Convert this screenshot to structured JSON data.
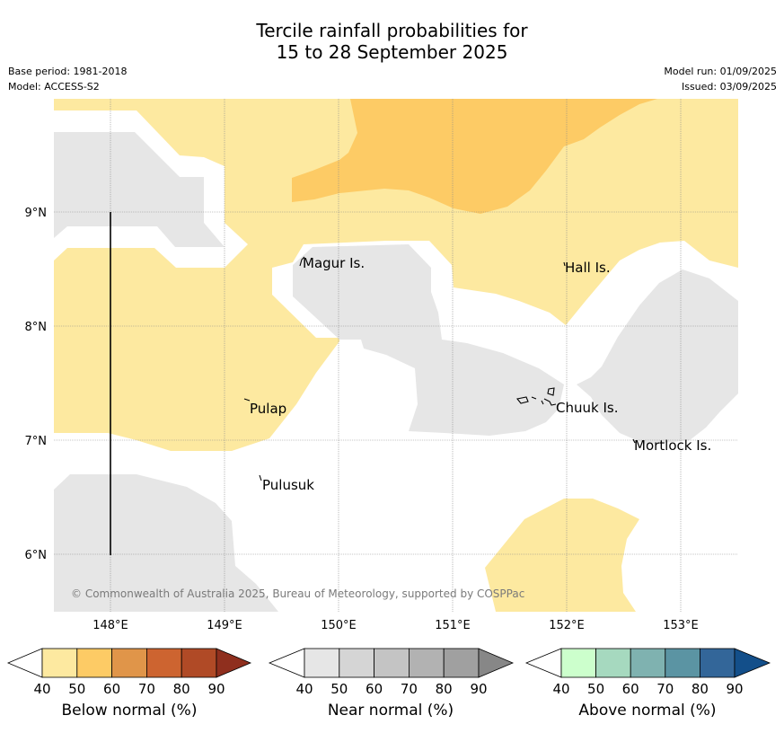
{
  "title": {
    "line1": "Tercile rainfall probabilities for",
    "line2": "15 to 28 September 2025"
  },
  "meta": {
    "base_period": "Base period: 1981-2018",
    "model": "Model: ACCESS-S2",
    "model_run": "Model run: 01/09/2025",
    "issued": "Issued: 03/09/2025"
  },
  "map": {
    "lon_range": [
      147.5,
      153.5
    ],
    "lat_range": [
      5.5,
      9.98
    ],
    "lon_ticks": [
      "148°E",
      "149°E",
      "150°E",
      "151°E",
      "152°E",
      "153°E"
    ],
    "lat_ticks": [
      "9°N",
      "8°N",
      "7°N",
      "6°N"
    ],
    "gridlines": true,
    "places": [
      "Magur Is.",
      "Hall Is.",
      "Pulap",
      "Chuuk Is.",
      "Mortlock Is.",
      "Pulusuk"
    ],
    "copyright": "© Commonwealth of Australia 2025, Bureau of Meteorology, supported by COSPPac",
    "colors": {
      "below_40_50": "#fde9a0",
      "below_50_60": "#fdcb65",
      "near_40_50": "#e6e6e6",
      "background": "#ffffff"
    }
  },
  "colorbars": [
    {
      "label": "Below normal (%)",
      "ticks": [
        "40",
        "50",
        "60",
        "70",
        "80",
        "90"
      ],
      "colors": [
        "#fde9a0",
        "#fdcb65",
        "#e09549",
        "#cd6430",
        "#b04a26",
        "#8f2f1e"
      ]
    },
    {
      "label": "Near normal (%)",
      "ticks": [
        "40",
        "50",
        "60",
        "70",
        "80",
        "90"
      ],
      "colors": [
        "#e6e6e6",
        "#d5d5d5",
        "#c4c4c4",
        "#b2b2b2",
        "#a0a0a0",
        "#878787"
      ]
    },
    {
      "label": "Above normal (%)",
      "ticks": [
        "40",
        "50",
        "60",
        "70",
        "80",
        "90"
      ],
      "colors": [
        "#ccffcc",
        "#a6d9bf",
        "#7fb2b0",
        "#5b94a3",
        "#336699",
        "#134f8a"
      ]
    }
  ]
}
